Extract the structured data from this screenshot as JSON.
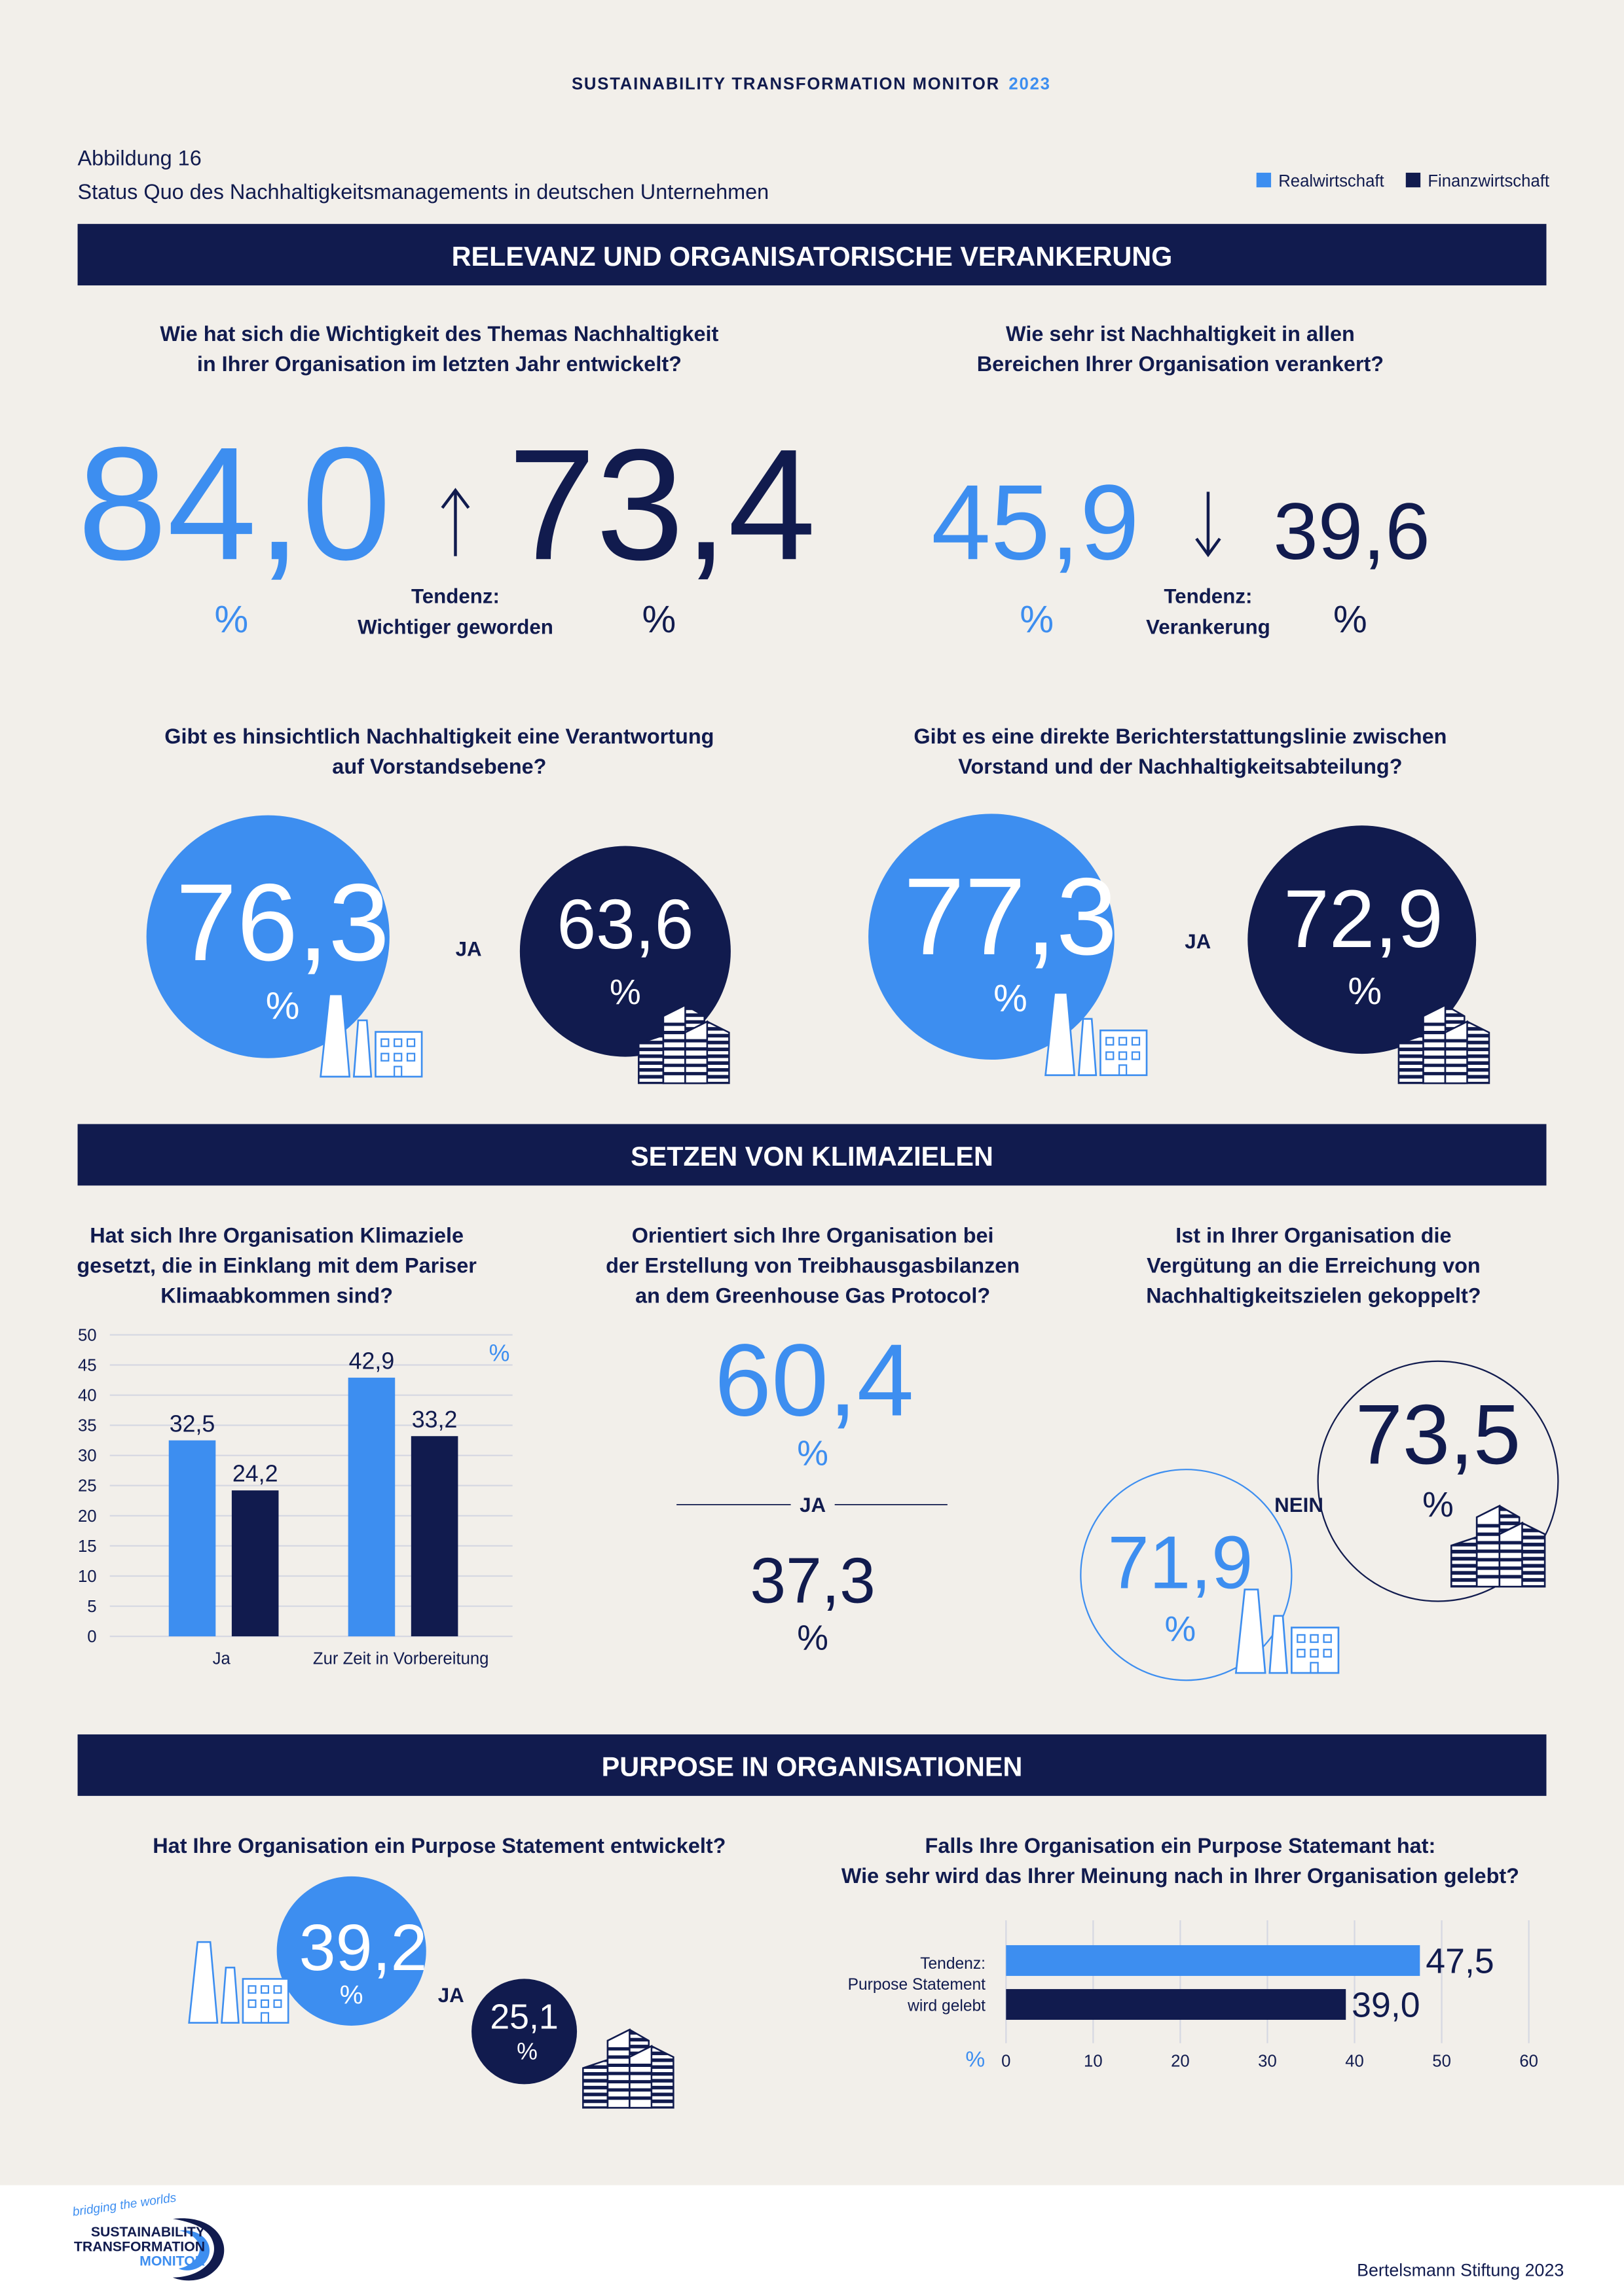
{
  "header": {
    "title": "SUSTAINABILITY TRANSFORMATION MONITOR",
    "year": "2023"
  },
  "figure": {
    "label": "Abbildung 16",
    "caption": "Status Quo des Nachhaltigkeitsmanagements in deutschen Unternehmen"
  },
  "legend": [
    {
      "name": "Realwirtschaft",
      "color": "#3d8ef0"
    },
    {
      "name": "Finanzwirtschaft",
      "color": "#111b4e"
    }
  ],
  "unit": "%",
  "sections": [
    {
      "title": "RELEVANZ UND ORGANISATORISCHE VERANKERUNG",
      "items": [
        {
          "question": [
            "Wie hat sich die Wichtigkeit des Themas Nachhaltigkeit",
            "in Ihrer Organisation im letzten Jahr entwickelt?"
          ],
          "real": "84,0",
          "finance": "73,4",
          "trend": [
            "Tendenz:",
            "Wichtiger geworden"
          ]
        },
        {
          "question": [
            "Wie sehr ist Nachhaltigkeit in allen",
            "Bereichen Ihrer Organisation verankert?"
          ],
          "real": "45,9",
          "finance": "39,6",
          "trend": [
            "Tendenz:",
            "Verankerung"
          ]
        },
        {
          "question": [
            "Gibt es hinsichtlich Nachhaltigkeit eine Verantwortung",
            "auf Vorstandsebene?"
          ],
          "real": "76,3",
          "finance": "63,6",
          "answer": "JA"
        },
        {
          "question": [
            "Gibt es eine direkte Berichterstattungslinie zwischen",
            "Vorstand und der Nachhaltigkeitsabteilung?"
          ],
          "real": "77,3",
          "finance": "72,9",
          "answer": "JA"
        }
      ]
    },
    {
      "title": "SETZEN VON KLIMAZIELEN",
      "items": [
        {
          "question": [
            "Hat sich Ihre Organisation Klimaziele",
            "gesetzt, die in Einklang mit dem Pariser",
            "Klimaabkommen sind?"
          ],
          "chart": {
            "type": "bar",
            "categories": [
              "Ja",
              "Zur Zeit in Vorbereitung"
            ],
            "series": [
              {
                "values": [
                  32.5,
                  42.9
                ],
                "value_labels": [
                  "32,5",
                  "42,9"
                ]
              },
              {
                "values": [
                  24.2,
                  33.2
                ],
                "value_labels": [
                  "24,2",
                  "33,2"
                ]
              }
            ],
            "ylim": [
              0,
              50
            ],
            "yticks": [
              0,
              5,
              10,
              15,
              20,
              25,
              30,
              35,
              40,
              45,
              50
            ],
            "grid": true
          }
        },
        {
          "question": [
            "Orientiert sich Ihre Organisation bei",
            "der Erstellung von Treibhausgasbilanzen",
            "an dem Greenhouse Gas Protocol?"
          ],
          "real": "60,4",
          "finance": "37,3",
          "answer": "JA"
        },
        {
          "question": [
            "Ist in Ihrer Organisation die",
            "Vergütung an die Erreichung von",
            "Nachhaltigkeitszielen gekoppelt?"
          ],
          "real": "71,9",
          "finance": "73,5",
          "answer": "NEIN"
        }
      ]
    },
    {
      "title": "PURPOSE IN ORGANISATIONEN",
      "items": [
        {
          "question": [
            "Hat Ihre Organisation ein Purpose Statement entwickelt?"
          ],
          "real": "39,2",
          "finance": "25,1",
          "answer": "JA"
        },
        {
          "question": [
            "Falls Ihre Organisation ein Purpose Statemant hat:",
            "Wie sehr wird das Ihrer Meinung nach in Ihrer Organisation gelebt?"
          ],
          "chart": {
            "type": "bar",
            "orientation": "horizontal",
            "categories": [
              [
                "Tendenz:",
                "Purpose Statement",
                "wird gelebt"
              ]
            ],
            "series": [
              {
                "values": [
                  47.5
                ],
                "value_labels": [
                  "47,5"
                ]
              },
              {
                "values": [
                  39.0
                ],
                "value_labels": [
                  "39,0"
                ]
              }
            ],
            "xlim": [
              0,
              60
            ],
            "xticks": [
              0,
              10,
              20,
              30,
              40,
              50,
              60
            ],
            "grid": true
          }
        }
      ]
    }
  ],
  "footer": {
    "logo": [
      "bridging the worlds",
      "SUSTAINABILITY",
      "TRANSFORMATION",
      "MONITOR"
    ],
    "credit": "Bertelsmann Stiftung 2023"
  }
}
